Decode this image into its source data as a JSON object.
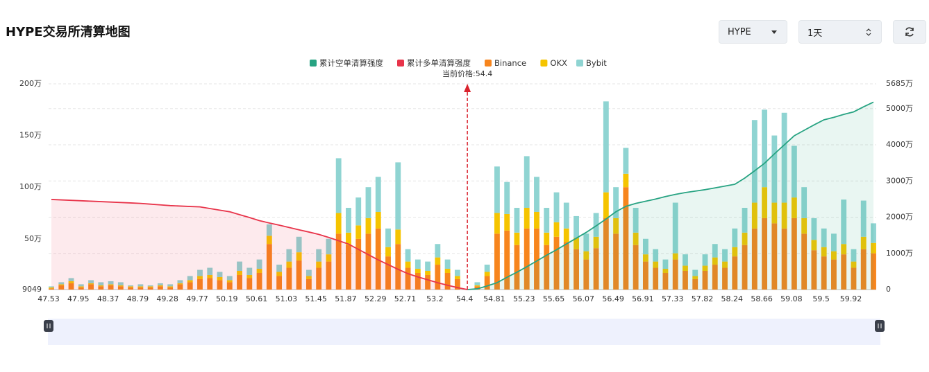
{
  "chart_data": {
    "type": "bar",
    "title": "HYPE交易所清算地图",
    "current_price": 54.4,
    "current_price_label": "当前价格:54.4",
    "categories": [
      "47.53",
      null,
      null,
      "47.95",
      null,
      null,
      "48.37",
      null,
      null,
      "48.79",
      null,
      null,
      "49.28",
      null,
      null,
      "49.77",
      null,
      null,
      "50.19",
      null,
      null,
      "50.61",
      null,
      null,
      "51.03",
      null,
      null,
      "51.45",
      null,
      null,
      "51.87",
      null,
      null,
      "52.29",
      null,
      null,
      "52.71",
      null,
      null,
      "53.2",
      null,
      null,
      "54.4",
      null,
      null,
      "54.81",
      null,
      null,
      "55.23",
      null,
      null,
      "55.65",
      null,
      null,
      "56.07",
      null,
      null,
      "56.49",
      null,
      null,
      "56.91",
      null,
      null,
      "57.33",
      null,
      null,
      "57.82",
      null,
      null,
      "58.24",
      null,
      null,
      "58.66",
      null,
      null,
      "59.08",
      null,
      null,
      "59.5",
      null,
      null,
      "59.92",
      null,
      null
    ],
    "ylim": [
      9049,
      2000000
    ],
    "yticks": [
      9049,
      {
        "value": 500000,
        "label": "50万"
      },
      {
        "value": 1000000,
        "label": "100万"
      },
      {
        "value": 1500000,
        "label": "150万"
      },
      {
        "value": 2000000,
        "label": "200万"
      }
    ],
    "y2lim": [
      0,
      56850000
    ],
    "y2ticks": [
      0,
      {
        "value": 10000000,
        "label": "1000万"
      },
      {
        "value": 20000000,
        "label": "2000万"
      },
      {
        "value": 30000000,
        "label": "3000万"
      },
      {
        "value": 40000000,
        "label": "4000万"
      },
      {
        "value": 50000000,
        "label": "5000万"
      },
      {
        "value": 56850000,
        "label": "5685万"
      }
    ],
    "grid": true,
    "legend": "top",
    "series": [
      {
        "name": "累计空单清算强度",
        "type": "line",
        "axis": "y2",
        "color": "#27a382",
        "area": true,
        "values": [
          null,
          null,
          null,
          null,
          null,
          null,
          null,
          null,
          null,
          null,
          null,
          null,
          null,
          null,
          null,
          null,
          null,
          null,
          null,
          null,
          null,
          null,
          null,
          null,
          null,
          null,
          null,
          null,
          null,
          null,
          null,
          null,
          null,
          null,
          null,
          null,
          null,
          null,
          null,
          null,
          null,
          null,
          0,
          200000,
          1000000,
          1900000,
          3400000,
          4800000,
          6300000,
          7900000,
          9500000,
          11000000,
          12600000,
          14200000,
          15800000,
          17600000,
          19500000,
          21500000,
          23000000,
          23800000,
          24400000,
          25000000,
          25700000,
          26300000,
          26800000,
          27200000,
          27600000,
          28100000,
          28600000,
          29100000,
          30800000,
          32800000,
          34900000,
          37500000,
          40000000,
          42500000,
          44000000,
          45500000,
          46900000,
          47600000,
          48400000,
          49100000,
          50500000,
          51800000
        ]
      },
      {
        "name": "累计多单清算强度",
        "type": "line",
        "axis": "y2",
        "color": "#e8344a",
        "area": true,
        "values": [
          24900000,
          24780000,
          24660000,
          24540000,
          24420000,
          24300000,
          24180000,
          24060000,
          23940000,
          23800000,
          23600000,
          23400000,
          23200000,
          23080000,
          22960000,
          22850000,
          22400000,
          21950000,
          21500000,
          20700000,
          19900000,
          19050000,
          18400000,
          17800000,
          17150000,
          16500000,
          15900000,
          15240000,
          14400000,
          13500000,
          12570000,
          11100000,
          9650000,
          8200000,
          6900000,
          5600000,
          4400000,
          3500000,
          2700000,
          1900000,
          1200000,
          550000,
          0,
          null,
          null,
          null,
          null,
          null,
          null,
          null,
          null,
          null,
          null,
          null,
          null,
          null,
          null,
          null,
          null,
          null,
          null,
          null,
          null,
          null,
          null,
          null,
          null,
          null,
          null,
          null,
          null,
          null,
          null,
          null,
          null,
          null,
          null,
          null,
          null,
          null,
          null,
          null,
          null,
          null
        ]
      },
      {
        "name": "Binance",
        "type": "bar",
        "axis": "y",
        "color": "#f7851d",
        "values": [
          20000,
          50000,
          70000,
          30000,
          60000,
          40000,
          50000,
          40000,
          30000,
          30000,
          30000,
          40000,
          30000,
          60000,
          80000,
          110000,
          120000,
          100000,
          80000,
          150000,
          120000,
          170000,
          450000,
          140000,
          220000,
          290000,
          110000,
          220000,
          280000,
          550000,
          440000,
          500000,
          550000,
          600000,
          330000,
          450000,
          220000,
          170000,
          150000,
          250000,
          170000,
          110000,
          0,
          40000,
          140000,
          550000,
          580000,
          440000,
          600000,
          600000,
          440000,
          520000,
          470000,
          400000,
          300000,
          410000,
          700000,
          550000,
          1000000,
          440000,
          280000,
          220000,
          170000,
          300000,
          190000,
          110000,
          190000,
          250000,
          220000,
          330000,
          440000,
          600000,
          700000,
          650000,
          600000,
          700000,
          550000,
          390000,
          330000,
          300000,
          350000,
          220000,
          400000,
          360000
        ]
      },
      {
        "name": "OKX",
        "type": "bar",
        "axis": "y",
        "color": "#f5c400",
        "values": [
          10000,
          10000,
          20000,
          10000,
          10000,
          10000,
          10000,
          10000,
          10000,
          10000,
          10000,
          10000,
          10000,
          10000,
          20000,
          30000,
          30000,
          30000,
          20000,
          40000,
          30000,
          40000,
          80000,
          40000,
          60000,
          80000,
          30000,
          60000,
          70000,
          200000,
          120000,
          130000,
          150000,
          160000,
          90000,
          140000,
          60000,
          40000,
          40000,
          70000,
          40000,
          30000,
          0,
          10000,
          40000,
          200000,
          160000,
          120000,
          200000,
          160000,
          120000,
          140000,
          130000,
          110000,
          80000,
          110000,
          250000,
          150000,
          130000,
          120000,
          70000,
          60000,
          40000,
          60000,
          50000,
          30000,
          50000,
          70000,
          60000,
          90000,
          120000,
          250000,
          300000,
          200000,
          250000,
          200000,
          150000,
          100000,
          90000,
          80000,
          100000,
          60000,
          120000,
          100000
        ]
      },
      {
        "name": "Bybit",
        "type": "bar",
        "axis": "y",
        "color": "#8fd4d2",
        "values": [
          10000,
          20000,
          30000,
          20000,
          30000,
          30000,
          30000,
          30000,
          10000,
          20000,
          10000,
          20000,
          20000,
          30000,
          40000,
          60000,
          70000,
          50000,
          40000,
          90000,
          70000,
          90000,
          110000,
          70000,
          120000,
          150000,
          60000,
          120000,
          150000,
          530000,
          240000,
          270000,
          300000,
          340000,
          180000,
          650000,
          120000,
          90000,
          90000,
          130000,
          90000,
          60000,
          0,
          30000,
          70000,
          450000,
          310000,
          240000,
          500000,
          340000,
          240000,
          290000,
          250000,
          210000,
          170000,
          230000,
          880000,
          300000,
          250000,
          240000,
          150000,
          120000,
          90000,
          490000,
          110000,
          60000,
          110000,
          130000,
          120000,
          180000,
          240000,
          800000,
          750000,
          650000,
          870000,
          500000,
          300000,
          210000,
          180000,
          170000,
          430000,
          120000,
          350000,
          190000
        ]
      }
    ]
  },
  "controls": {
    "coin": "HYPE",
    "interval": "1天"
  }
}
